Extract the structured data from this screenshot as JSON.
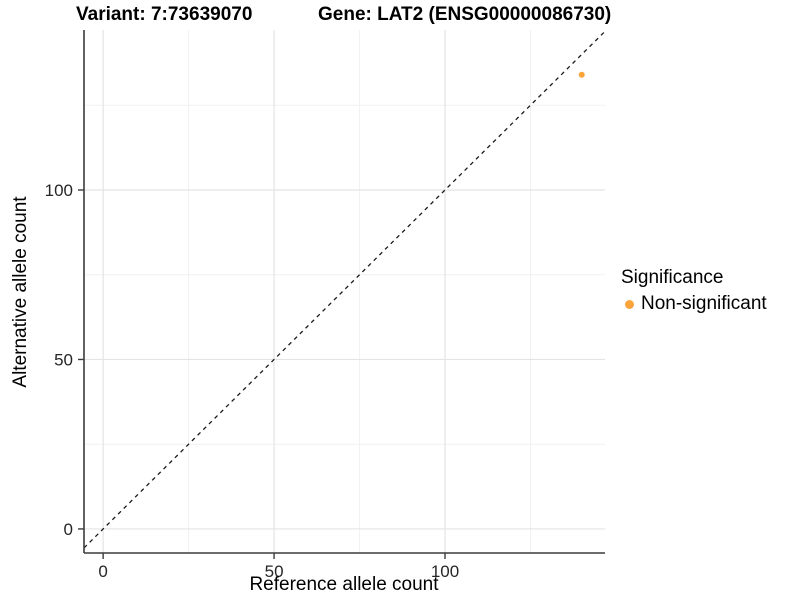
{
  "chart_data": {
    "type": "scatter",
    "title_left": "Variant: 7:73639070",
    "title_right": "Gene: LAT2 (ENSG00000086730)",
    "xlabel": "Reference allele count",
    "ylabel": "Alternative allele count",
    "xlim": [
      -5.6,
      146.8
    ],
    "ylim": [
      -7.1,
      147.2
    ],
    "x_ticks": [
      0,
      50,
      100
    ],
    "y_ticks": [
      0,
      50,
      100
    ],
    "x_minor_ticks": [
      25,
      75,
      125
    ],
    "y_minor_ticks": [
      25,
      75,
      125
    ],
    "grid": true,
    "series": [
      {
        "name": "Non-significant",
        "color": "#FAA43A",
        "points": [
          {
            "x": 140,
            "y": 134
          }
        ]
      }
    ],
    "reference_line": {
      "slope": 1,
      "intercept": 0,
      "style": "dashed",
      "color": "#1a1a1a"
    },
    "legend": {
      "position": "right",
      "title": "Significance",
      "items": [
        {
          "label": "Non-significant",
          "color": "#FAA43A"
        }
      ]
    },
    "colors": {
      "background": "#ffffff",
      "grid_major": "#e4e4e4",
      "grid_minor": "#f1f1f1",
      "axis_line": "#3c3c3c",
      "tick_text": "#262626",
      "point": "#FAA43A"
    }
  }
}
